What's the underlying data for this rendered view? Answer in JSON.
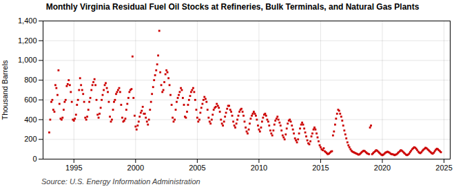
{
  "chart_data": {
    "type": "scatter",
    "title": "Monthly Virginia Residual Fuel Oil Stocks at Refineries, Bulk Terminals, and Natural Gas Plants",
    "ylabel": "Thousand Barrels",
    "annotations": [
      "Source: U.S. Energy Information Administration"
    ],
    "color": "#cc0000",
    "marker": "square",
    "grid": true,
    "xlim": [
      1992.5,
      2025.5
    ],
    "xticks": [
      1995,
      2000,
      2005,
      2010,
      2015,
      2020,
      2025
    ],
    "ylim": [
      0,
      1400
    ],
    "yticks": [
      0,
      200,
      400,
      600,
      800,
      {
        "value": 1000,
        "label": "1,000"
      },
      {
        "value": 1200,
        "label": "1,200"
      },
      {
        "value": 1400,
        "label": "1,400"
      }
    ],
    "x": [
      1993.0,
      1993.08,
      1993.17,
      1993.25,
      1993.33,
      1993.42,
      1993.5,
      1993.58,
      1993.67,
      1993.75,
      1993.83,
      1993.92,
      1994.0,
      1994.08,
      1994.17,
      1994.25,
      1994.33,
      1994.42,
      1994.5,
      1994.58,
      1994.67,
      1994.75,
      1994.83,
      1994.92,
      1995.0,
      1995.08,
      1995.17,
      1995.25,
      1995.33,
      1995.42,
      1995.5,
      1995.58,
      1995.67,
      1995.75,
      1995.83,
      1995.92,
      1996.0,
      1996.08,
      1996.17,
      1996.25,
      1996.33,
      1996.42,
      1996.5,
      1996.58,
      1996.67,
      1996.75,
      1996.83,
      1996.92,
      1997.0,
      1997.08,
      1997.17,
      1997.25,
      1997.33,
      1997.42,
      1997.5,
      1997.58,
      1997.67,
      1997.75,
      1997.83,
      1997.92,
      1998.0,
      1998.08,
      1998.17,
      1998.25,
      1998.33,
      1998.42,
      1998.5,
      1998.58,
      1998.67,
      1998.75,
      1998.83,
      1998.92,
      1999.0,
      1999.08,
      1999.17,
      1999.25,
      1999.33,
      1999.42,
      1999.5,
      1999.58,
      1999.67,
      1999.75,
      1999.83,
      1999.92,
      2000.0,
      2000.08,
      2000.17,
      2000.25,
      2000.33,
      2000.42,
      2000.5,
      2000.58,
      2000.67,
      2000.75,
      2000.83,
      2000.92,
      2001.0,
      2001.08,
      2001.17,
      2001.25,
      2001.33,
      2001.42,
      2001.5,
      2001.58,
      2001.67,
      2001.75,
      2001.83,
      2001.92,
      2002.0,
      2002.08,
      2002.17,
      2002.25,
      2002.33,
      2002.42,
      2002.5,
      2002.58,
      2002.67,
      2002.75,
      2002.83,
      2002.92,
      2003.0,
      2003.08,
      2003.17,
      2003.25,
      2003.33,
      2003.42,
      2003.5,
      2003.58,
      2003.67,
      2003.75,
      2003.83,
      2003.92,
      2004.0,
      2004.08,
      2004.17,
      2004.25,
      2004.33,
      2004.42,
      2004.5,
      2004.58,
      2004.67,
      2004.75,
      2004.83,
      2004.92,
      2005.0,
      2005.08,
      2005.17,
      2005.25,
      2005.33,
      2005.42,
      2005.5,
      2005.58,
      2005.67,
      2005.75,
      2005.83,
      2005.92,
      2006.0,
      2006.08,
      2006.17,
      2006.25,
      2006.33,
      2006.42,
      2006.5,
      2006.58,
      2006.67,
      2006.75,
      2006.83,
      2006.92,
      2007.0,
      2007.08,
      2007.17,
      2007.25,
      2007.33,
      2007.42,
      2007.5,
      2007.58,
      2007.67,
      2007.75,
      2007.83,
      2007.92,
      2008.0,
      2008.08,
      2008.17,
      2008.25,
      2008.33,
      2008.42,
      2008.5,
      2008.58,
      2008.67,
      2008.75,
      2008.83,
      2008.92,
      2009.0,
      2009.08,
      2009.17,
      2009.25,
      2009.33,
      2009.42,
      2009.5,
      2009.58,
      2009.67,
      2009.75,
      2009.83,
      2009.92,
      2010.0,
      2010.08,
      2010.17,
      2010.25,
      2010.33,
      2010.42,
      2010.5,
      2010.58,
      2010.67,
      2010.75,
      2010.83,
      2010.92,
      2011.0,
      2011.08,
      2011.17,
      2011.25,
      2011.33,
      2011.42,
      2011.5,
      2011.58,
      2011.67,
      2011.75,
      2011.83,
      2011.92,
      2012.0,
      2012.08,
      2012.17,
      2012.25,
      2012.33,
      2012.42,
      2012.5,
      2012.58,
      2012.67,
      2012.75,
      2012.83,
      2012.92,
      2013.0,
      2013.08,
      2013.17,
      2013.25,
      2013.33,
      2013.42,
      2013.5,
      2013.58,
      2013.67,
      2013.75,
      2013.83,
      2013.92,
      2014.0,
      2014.08,
      2014.17,
      2014.25,
      2014.33,
      2014.42,
      2014.5,
      2014.58,
      2014.67,
      2014.75,
      2014.83,
      2014.92,
      2015.0,
      2015.08,
      2015.17,
      2015.25,
      2015.33,
      2015.42,
      2015.5,
      2015.58,
      2015.67,
      2015.75,
      2015.83,
      2015.92,
      2016.0,
      2016.08,
      2016.17,
      2016.25,
      2016.33,
      2016.42,
      2016.5,
      2016.58,
      2016.67,
      2016.75,
      2016.83,
      2016.92,
      2017.0,
      2017.08,
      2017.17,
      2017.25,
      2017.33,
      2017.42,
      2017.5,
      2017.58,
      2017.67,
      2017.75,
      2017.83,
      2017.92,
      2018.0,
      2018.08,
      2018.17,
      2018.25,
      2018.33,
      2018.42,
      2018.5,
      2018.58,
      2018.67,
      2018.75,
      2018.83,
      2018.92,
      2019.0,
      2019.08,
      2019.17,
      2019.25,
      2019.33,
      2019.42,
      2019.5,
      2019.58,
      2019.67,
      2019.75,
      2019.83,
      2019.92,
      2020.0,
      2020.08,
      2020.17,
      2020.25,
      2020.33,
      2020.42,
      2020.5,
      2020.58,
      2020.67,
      2020.75,
      2020.83,
      2020.92,
      2021.0,
      2021.08,
      2021.17,
      2021.25,
      2021.33,
      2021.42,
      2021.5,
      2021.58,
      2021.67,
      2021.75,
      2021.83,
      2021.92,
      2022.0,
      2022.08,
      2022.17,
      2022.25,
      2022.33,
      2022.42,
      2022.5,
      2022.58,
      2022.67,
      2022.75,
      2022.83,
      2022.92,
      2023.0,
      2023.08,
      2023.17,
      2023.25,
      2023.33,
      2023.42,
      2023.5,
      2023.58,
      2023.67,
      2023.75,
      2023.83,
      2023.92,
      2024.0,
      2024.08,
      2024.17,
      2024.25,
      2024.33,
      2024.42,
      2024.5,
      2024.58,
      2024.67,
      2024.75
    ],
    "values": [
      270,
      400,
      580,
      600,
      500,
      480,
      750,
      720,
      650,
      900,
      560,
      410,
      400,
      420,
      500,
      580,
      600,
      740,
      760,
      800,
      750,
      680,
      580,
      400,
      390,
      410,
      450,
      550,
      600,
      700,
      820,
      750,
      700,
      660,
      580,
      420,
      400,
      430,
      500,
      580,
      620,
      700,
      750,
      780,
      810,
      750,
      600,
      450,
      420,
      460,
      520,
      600,
      650,
      700,
      750,
      770,
      720,
      680,
      580,
      430,
      380,
      400,
      500,
      580,
      600,
      660,
      680,
      700,
      720,
      680,
      550,
      420,
      380,
      390,
      410,
      500,
      560,
      620,
      680,
      700,
      710,
      1040,
      620,
      440,
      330,
      300,
      340,
      380,
      430,
      470,
      490,
      530,
      460,
      460,
      420,
      380,
      350,
      400,
      500,
      580,
      660,
      730,
      800,
      850,
      900,
      960,
      1050,
      1300,
      880,
      750,
      680,
      700,
      780,
      860,
      900,
      880,
      820,
      750,
      650,
      550,
      420,
      380,
      400,
      500,
      580,
      620,
      650,
      680,
      720,
      700,
      620,
      550,
      430,
      420,
      480,
      550,
      600,
      640,
      680,
      700,
      720,
      680,
      600,
      500,
      420,
      380,
      400,
      470,
      520,
      560,
      600,
      630,
      610,
      580,
      500,
      420,
      380,
      360,
      400,
      450,
      500,
      520,
      530,
      560,
      540,
      520,
      480,
      400,
      360,
      340,
      380,
      430,
      470,
      510,
      540,
      540,
      500,
      480,
      440,
      380,
      340,
      320,
      360,
      400,
      440,
      480,
      500,
      510,
      480,
      440,
      380,
      320,
      280,
      260,
      300,
      360,
      410,
      440,
      460,
      480,
      460,
      440,
      400,
      340,
      300,
      280,
      320,
      380,
      420,
      450,
      460,
      440,
      400,
      380,
      340,
      290,
      260,
      240,
      290,
      350,
      390,
      410,
      430,
      400,
      370,
      340,
      290,
      240,
      220,
      200,
      250,
      310,
      360,
      390,
      400,
      380,
      340,
      300,
      260,
      210,
      190,
      170,
      200,
      260,
      310,
      350,
      370,
      350,
      310,
      270,
      230,
      190,
      160,
      150,
      180,
      230,
      260,
      300,
      320,
      300,
      260,
      220,
      180,
      140,
      120,
      100,
      90,
      110,
      80,
      70,
      60,
      50,
      55,
      65,
      75,
      80,
      240,
      280,
      350,
      410,
      460,
      500,
      490,
      460,
      430,
      390,
      340,
      290,
      250,
      210,
      170,
      140,
      120,
      100,
      85,
      75,
      70,
      65,
      60,
      55,
      50,
      45,
      50,
      60,
      70,
      80,
      85,
      80,
      70,
      60,
      55,
      50,
      320,
      340,
      50,
      60,
      70,
      80,
      90,
      85,
      75,
      65,
      55,
      45,
      40,
      45,
      55,
      65,
      70,
      75,
      70,
      65,
      55,
      50,
      50,
      45,
      40,
      45,
      50,
      60,
      70,
      80,
      90,
      85,
      75,
      65,
      55,
      45,
      40,
      45,
      55,
      70,
      85,
      100,
      110,
      120,
      115,
      105,
      90,
      75,
      65,
      60,
      70,
      85,
      95,
      105,
      115,
      110,
      100,
      90,
      80,
      70,
      60,
      55,
      65,
      80,
      95,
      105,
      100,
      90,
      80,
      70
    ]
  }
}
